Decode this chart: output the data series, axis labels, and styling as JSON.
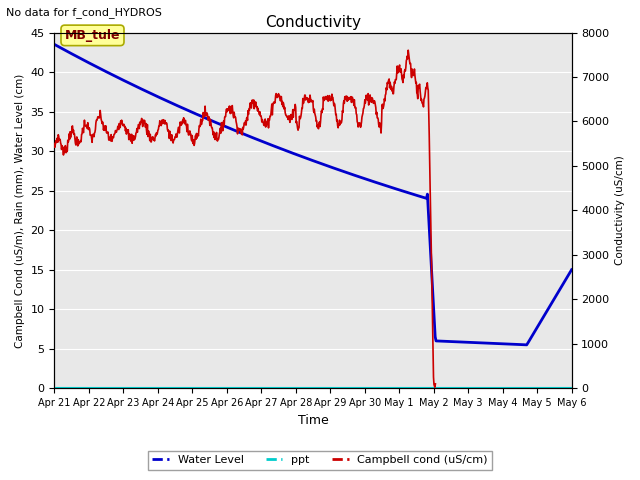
{
  "title": "Conductivity",
  "subtitle": "No data for f_cond_HYDROS",
  "xlabel": "Time",
  "ylabel_left": "Campbell Cond (uS/m), Rain (mm), Water Level (cm)",
  "ylabel_right": "Conductivity (uS/cm)",
  "annotation": "MB_tule",
  "ylim_left": [
    0,
    45
  ],
  "ylim_right": [
    0,
    8000
  ],
  "background_color": "#ffffff",
  "plot_bg_color": "#e8e8e8",
  "grid_color": "#ffffff",
  "water_level_color": "#0000cc",
  "ppt_color": "#00cccc",
  "campbell_color": "#cc0000",
  "x_tick_labels": [
    "Apr 21",
    "Apr 22",
    "Apr 23",
    "Apr 24",
    "Apr 25",
    "Apr 26",
    "Apr 27",
    "Apr 28",
    "Apr 29",
    "Apr 30",
    "May 1",
    "May 2",
    "May 3",
    "May 4",
    "May 5",
    "May 6"
  ]
}
